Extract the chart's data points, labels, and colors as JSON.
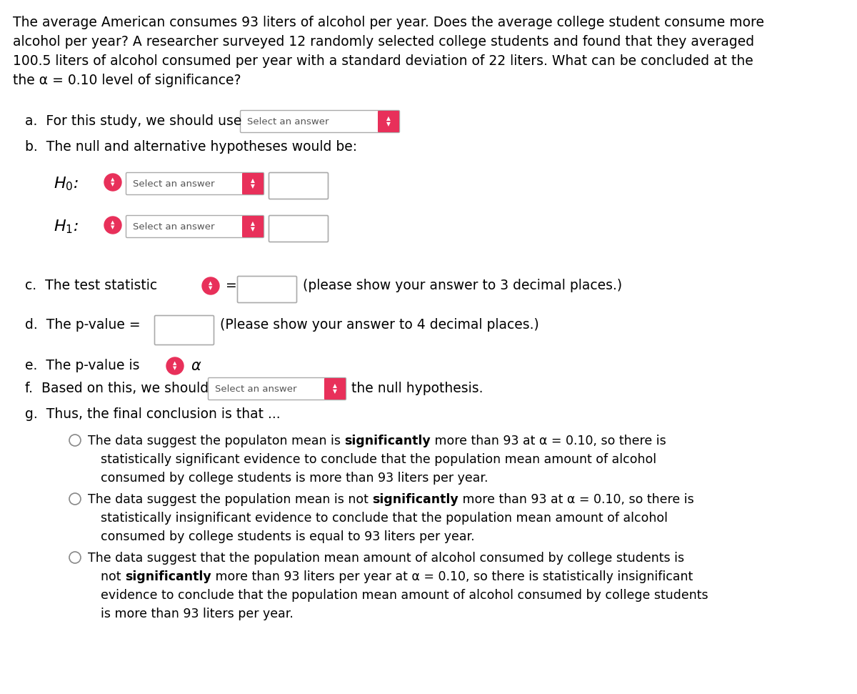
{
  "bg_color": "#ffffff",
  "text_color": "#000000",
  "pink_color": "#e8305a",
  "intro_text_lines": [
    "The average American consumes 93 liters of alcohol per year. Does the average college student consume more",
    "alcohol per year? A researcher surveyed 12 randomly selected college students and found that they averaged",
    "100.5 liters of alcohol consumed per year with a standard deviation of 22 liters. What can be concluded at the",
    "the α = 0.10 level of significance?"
  ],
  "section_a_prefix": "a.  For this study, we should use",
  "section_a_dropdown": "Select an answer",
  "section_b_prefix": "b.  The null and alternative hypotheses would be:",
  "section_c_prefix": "c.  The test statistic",
  "section_c_suffix": "(please show your answer to 3 decimal places.)",
  "section_d_prefix": "d.  The p-value =",
  "section_d_suffix": "(Please show your answer to 4 decimal places.)",
  "section_e_prefix": "e.  The p-value is",
  "section_f_prefix": "f.  Based on this, we should",
  "section_f_dropdown": "Select an answer",
  "section_f_suffix": "the null hypothesis.",
  "section_g_prefix": "g.  Thus, the final conclusion is that ...",
  "opt1_pre": "The data suggest the populaton mean is ",
  "opt1_bold": "significantly",
  "opt1_post_lines": [
    " more than 93 at α = 0.10, so there is",
    "statistically significant evidence to conclude that the population mean amount of alcohol",
    "consumed by college students is more than 93 liters per year."
  ],
  "opt2_pre": "The data suggest the population mean is not ",
  "opt2_bold": "significantly",
  "opt2_post_lines": [
    " more than 93 at α = 0.10, so there is",
    "statistically insignificant evidence to conclude that the population mean amount of alcohol",
    "consumed by college students is equal to 93 liters per year."
  ],
  "opt3_line1": "The data suggest that the population mean amount of alcohol consumed by college students is",
  "opt3_pre": "not ",
  "opt3_bold": "significantly",
  "opt3_post_lines": [
    " more than 93 liters per year at α = 0.10, so there is statistically insignificant",
    "evidence to conclude that the population mean amount of alcohol consumed by college students",
    "is more than 93 liters per year."
  ]
}
